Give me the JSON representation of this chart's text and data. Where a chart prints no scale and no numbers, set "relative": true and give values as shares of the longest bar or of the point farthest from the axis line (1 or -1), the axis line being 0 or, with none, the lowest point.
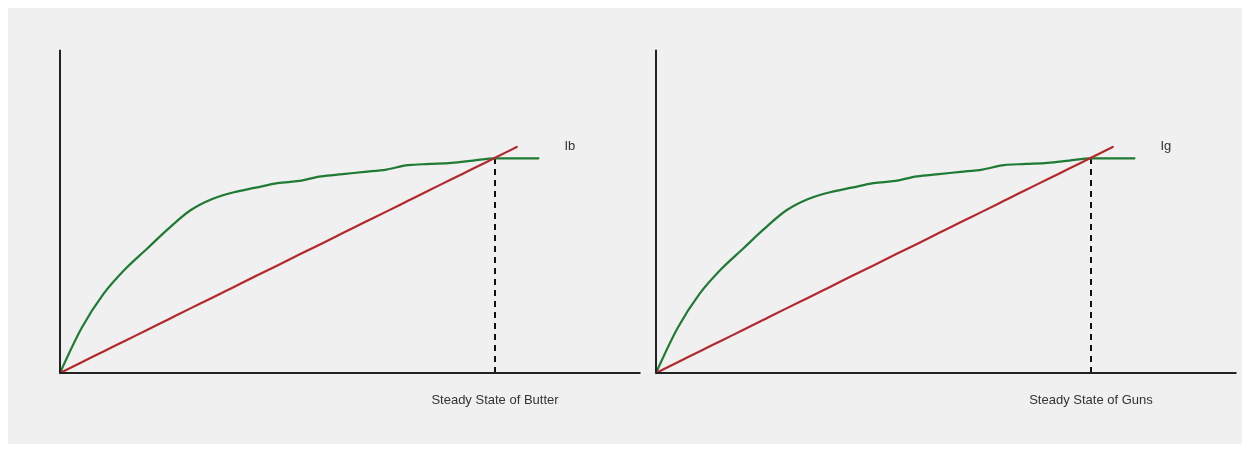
{
  "chart_data": [
    {
      "type": "line",
      "relative": true,
      "categories": [
        null,
        null,
        null,
        null,
        null,
        null,
        null,
        null,
        null,
        null,
        null,
        null,
        null,
        null,
        null,
        null,
        null,
        null,
        null,
        null,
        null,
        null,
        null,
        null,
        null,
        null,
        null
      ],
      "series": [
        {
          "name": "Ib",
          "color": "#1f7a34",
          "values": [
            0,
            0.2,
            0.35,
            0.46,
            0.55,
            0.64,
            0.72,
            0.77,
            0.8,
            0.82,
            0.84,
            0.85,
            0.87,
            0.88,
            0.89,
            0.9,
            0.92,
            0.925,
            0.93,
            0.94,
            0.95,
            0.95,
            0.95,
            null,
            null,
            null,
            null
          ]
        },
        {
          "color": "#b3282d",
          "values": [
            0,
            0.048,
            0.095,
            0.143,
            0.19,
            0.238,
            0.286,
            0.333,
            0.381,
            0.429,
            0.476,
            0.524,
            0.571,
            0.619,
            0.667,
            0.714,
            0.762,
            0.81,
            0.857,
            0.905,
            0.952,
            1,
            null,
            null,
            null,
            null,
            null
          ]
        }
      ],
      "annotations": [
        "Steady State of Butter"
      ],
      "legend": false,
      "line_style": "solid"
    },
    {
      "type": "line",
      "relative": true,
      "categories": [
        null,
        null,
        null,
        null,
        null,
        null,
        null,
        null,
        null,
        null,
        null,
        null,
        null,
        null,
        null,
        null,
        null,
        null,
        null,
        null,
        null,
        null,
        null,
        null,
        null,
        null,
        null
      ],
      "series": [
        {
          "name": "Ig",
          "color": "#1f7a34",
          "values": [
            0,
            0.2,
            0.35,
            0.46,
            0.55,
            0.64,
            0.72,
            0.77,
            0.8,
            0.82,
            0.84,
            0.85,
            0.87,
            0.88,
            0.89,
            0.9,
            0.92,
            0.925,
            0.93,
            0.94,
            0.95,
            0.95,
            0.95,
            null,
            null,
            null,
            null
          ]
        },
        {
          "color": "#b3282d",
          "values": [
            0,
            0.048,
            0.095,
            0.143,
            0.19,
            0.238,
            0.286,
            0.333,
            0.381,
            0.429,
            0.476,
            0.524,
            0.571,
            0.619,
            0.667,
            0.714,
            0.762,
            0.81,
            0.857,
            0.905,
            0.952,
            1,
            null,
            null,
            null,
            null,
            null
          ]
        }
      ],
      "annotations": [
        "Steady State of Guns"
      ],
      "legend": false,
      "line_style": "solid"
    }
  ]
}
